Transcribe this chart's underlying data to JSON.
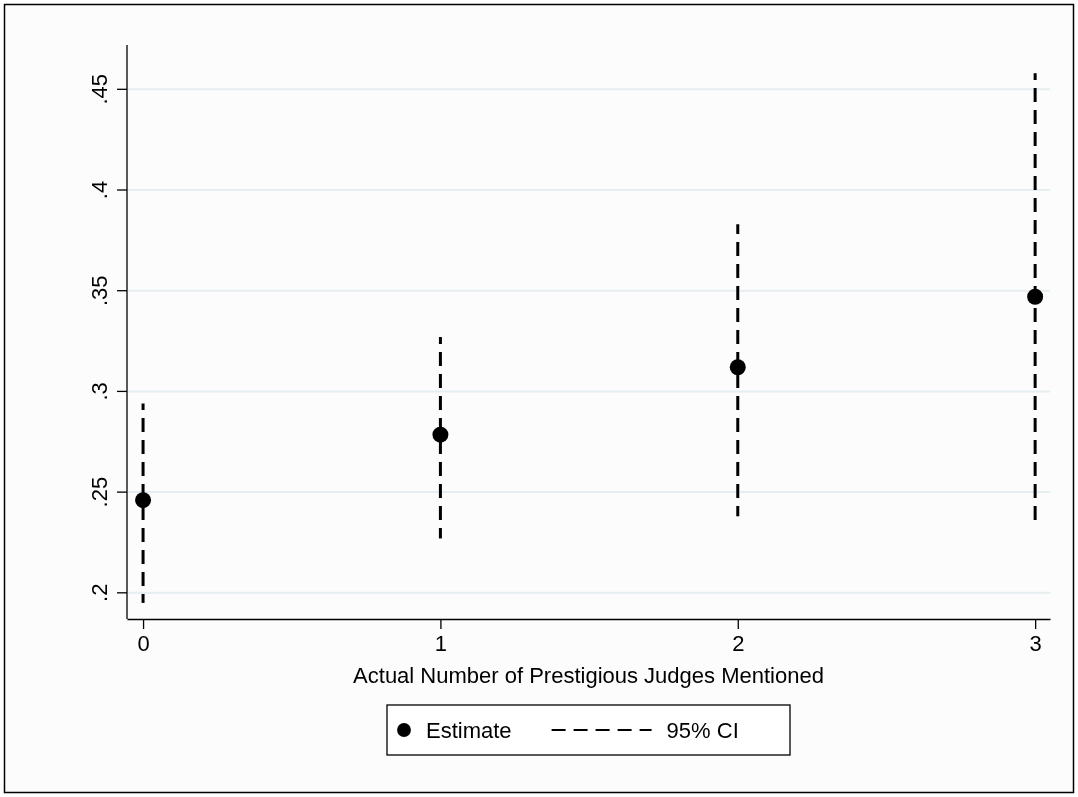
{
  "chart_data": {
    "type": "scatter",
    "xlabel": "Actual Number of Prestigious Judges Mentioned",
    "x": [
      0,
      1,
      2,
      3
    ],
    "series": [
      {
        "name": "Estimate",
        "color": "#000000",
        "marker": "circle",
        "values": [
          0.246,
          0.2785,
          0.312,
          0.347
        ]
      },
      {
        "name": "95% CI",
        "type": "bar",
        "color": "#000000",
        "line_style": "dashed",
        "base": [
          0.195,
          0.227,
          0.238,
          0.233
        ],
        "values": [
          0.099,
          0.1,
          0.145,
          0.225
        ]
      }
    ],
    "xlim": [
      -0.054,
      3.05
    ],
    "xticks": [
      0,
      1,
      2,
      3
    ],
    "ylim": [
      0.187,
      0.472
    ],
    "yticks": [
      {
        "value": 0.2,
        "label": ".2"
      },
      {
        "value": 0.25,
        "label": ".25"
      },
      {
        "value": 0.3,
        "label": ".3"
      },
      {
        "value": 0.35,
        "label": ".35"
      },
      {
        "value": 0.4,
        "label": ".4"
      },
      {
        "value": 0.45,
        "label": ".45"
      }
    ],
    "grid": "y",
    "legend": "bottom"
  }
}
